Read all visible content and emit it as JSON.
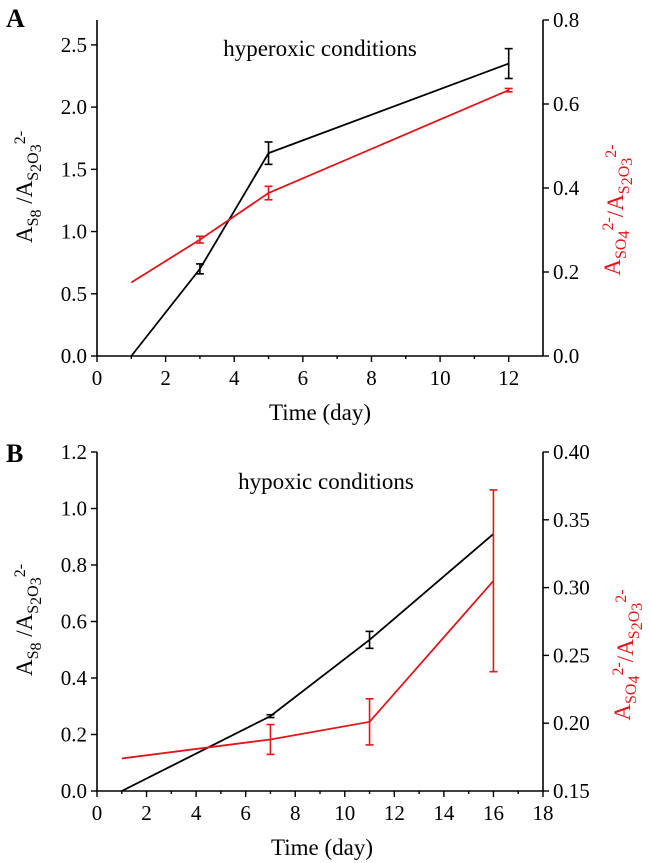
{
  "chart_data": [
    {
      "panel": "A",
      "type": "line",
      "annotation": "hyperoxic conditions",
      "xlabel": "Time (day)",
      "xlim": [
        0,
        13
      ],
      "xticks": [
        0,
        2,
        4,
        6,
        8,
        10,
        12
      ],
      "ylim_left": [
        0,
        2.7
      ],
      "yticks_left": [
        "0.0",
        "0.5",
        "1.0",
        "1.5",
        "2.0",
        "2.5"
      ],
      "ylim_right": [
        0,
        0.8
      ],
      "yticks_right": [
        "0.0",
        "0.2",
        "0.4",
        "0.6",
        "0.8"
      ],
      "ylabel_left": {
        "a": "A",
        "s8": "S",
        "s8sub": "8",
        "slash": " /A",
        "s2o3": "S",
        "s2o3sub": "2",
        "o3": "O",
        "o3sub": "3",
        "o3sup": "2-"
      },
      "ylabel_right": {
        "a": "A",
        "so4": "SO",
        "so4sub": "4",
        "so4sup": "2-",
        "slash": "/A",
        "s2o3": "S",
        "s2o3sub": "2",
        "o3": "O",
        "o3sub": "3",
        "o3sup": "2-"
      },
      "series": [
        {
          "name": "A_S8/A_S2O3",
          "axis": "left",
          "color": "#000000",
          "x": [
            1,
            3,
            5,
            12
          ],
          "y": [
            0,
            0.7,
            1.63,
            2.35
          ],
          "err": [
            null,
            0.04,
            0.09,
            0.12
          ]
        },
        {
          "name": "A_SO4/A_S2O3",
          "axis": "right",
          "color": "#e0161b",
          "x": [
            1,
            3,
            5,
            12
          ],
          "y": [
            0.175,
            0.277,
            0.388,
            0.633
          ],
          "err": [
            null,
            0.008,
            0.016,
            0.004
          ]
        }
      ]
    },
    {
      "panel": "B",
      "type": "line",
      "annotation": "hypoxic conditions",
      "xlabel": "Time (day)",
      "xlim": [
        0,
        18
      ],
      "xticks": [
        0,
        2,
        4,
        6,
        8,
        10,
        12,
        14,
        16,
        18
      ],
      "ylim_left": [
        0,
        1.2
      ],
      "yticks_left": [
        "0.0",
        "0.2",
        "0.4",
        "0.6",
        "0.8",
        "1.0",
        "1.2"
      ],
      "ylim_right": [
        0.15,
        0.4
      ],
      "yticks_right": [
        "0.15",
        "0.20",
        "0.25",
        "0.30",
        "0.35",
        "0.40"
      ],
      "ylabel_left": {
        "a": "A",
        "s8": "S",
        "s8sub": "8",
        "slash": " /A",
        "s2o3": "S",
        "s2o3sub": "2",
        "o3": "O",
        "o3sub": "3",
        "o3sup": "2-"
      },
      "ylabel_right": {
        "a": "A",
        "so4": "SO",
        "so4sub": "4",
        "so4sup": "2-",
        "slash": "/A",
        "s2o3": "S",
        "s2o3sub": "2",
        "o3": "O",
        "o3sub": "3",
        "o3sup": "2-"
      },
      "series": [
        {
          "name": "A_S8/A_S2O3",
          "axis": "left",
          "color": "#000000",
          "x": [
            1,
            7,
            11,
            16
          ],
          "y": [
            0,
            0.265,
            0.535,
            0.91
          ],
          "err": [
            null,
            0.005,
            0.03,
            null
          ]
        },
        {
          "name": "A_SO4/A_S2O3",
          "axis": "right",
          "color": "#e0161b",
          "x": [
            1,
            7,
            11,
            16
          ],
          "y": [
            0.174,
            0.188,
            0.201,
            0.305
          ],
          "err": [
            null,
            0.011,
            0.017,
            0.067
          ]
        }
      ]
    }
  ]
}
